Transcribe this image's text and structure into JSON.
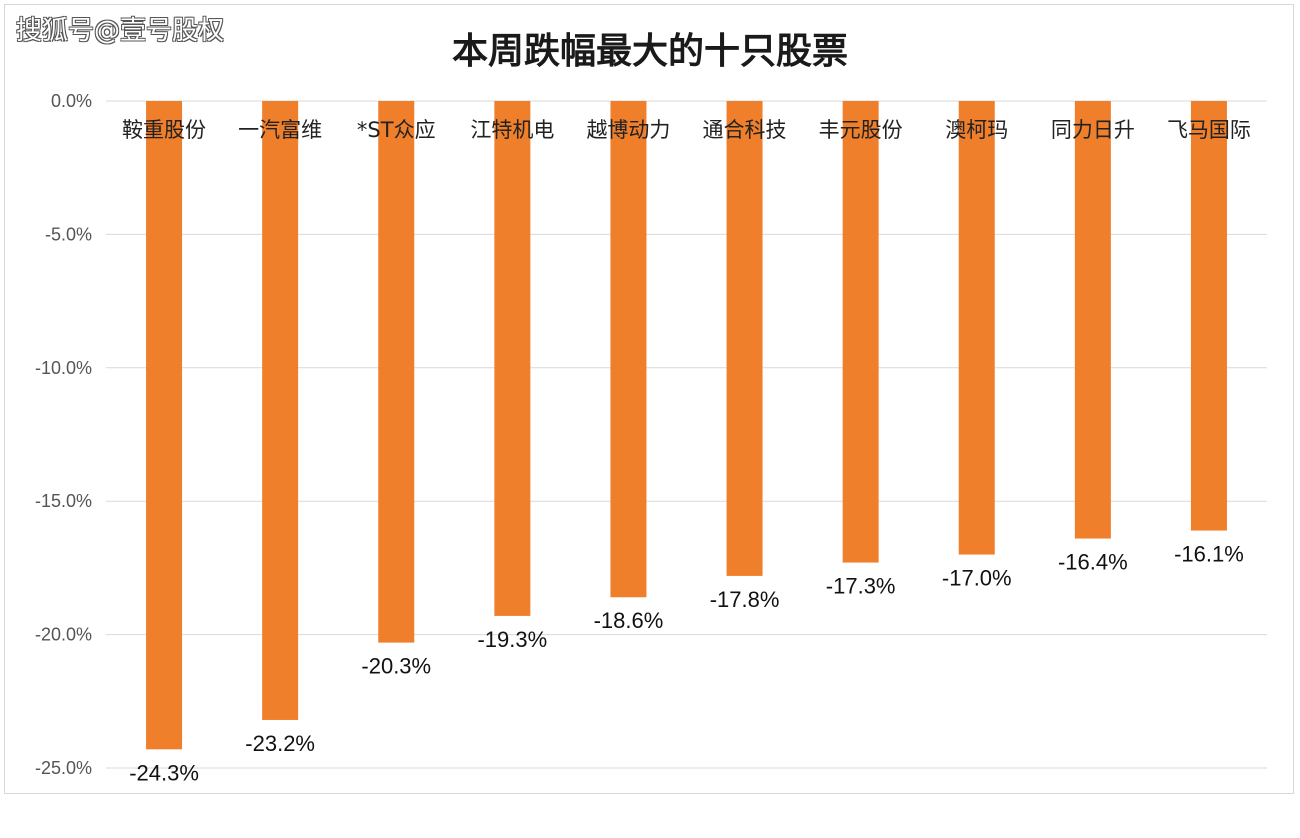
{
  "watermark": "搜狐号@壹号股权",
  "chart_data": {
    "type": "bar",
    "title": "本周跌幅最大的十只股票",
    "categories": [
      "鞍重股份",
      "一汽富维",
      "*ST众应",
      "江特机电",
      "越博动力",
      "通合科技",
      "丰元股份",
      "澳柯玛",
      "同力日升",
      "飞马国际"
    ],
    "values": [
      -24.3,
      -23.2,
      -20.3,
      -19.3,
      -18.6,
      -17.8,
      -17.3,
      -17.0,
      -16.4,
      -16.1
    ],
    "value_labels": [
      "-24.3%",
      "-23.2%",
      "-20.3%",
      "-19.3%",
      "-18.6%",
      "-17.8%",
      "-17.3%",
      "-17.0%",
      "-16.4%",
      "-16.1%"
    ],
    "yticks": [
      0,
      -5,
      -10,
      -15,
      -20,
      -25
    ],
    "ytick_labels": [
      "0.0%",
      "-5.0%",
      "-10.0%",
      "-15.0%",
      "-20.0%",
      "-25.0%"
    ],
    "ylim": [
      -25,
      0
    ],
    "xlabel": "",
    "ylabel": "",
    "grid": true,
    "bar_color": "#F07F2B",
    "grid_color": "#d9d9d9"
  }
}
